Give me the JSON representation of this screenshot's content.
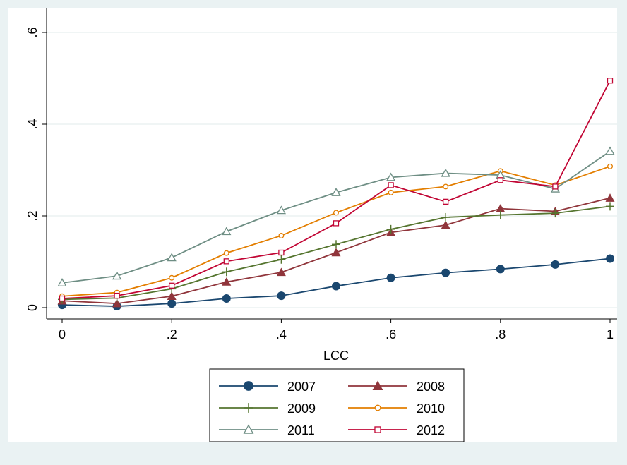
{
  "chart_data": {
    "type": "line",
    "title": "",
    "xlabel": "LCC",
    "ylabel": "",
    "x": [
      0,
      0.1,
      0.2,
      0.3,
      0.4,
      0.5,
      0.6,
      0.7,
      0.8,
      0.9,
      1.0
    ],
    "xlim": [
      0,
      1
    ],
    "ylim": [
      0,
      0.6
    ],
    "xticks": [
      0,
      0.2,
      0.4,
      0.6,
      0.8,
      1.0
    ],
    "xtick_labels": [
      "0",
      ".2",
      ".4",
      ".6",
      ".8",
      "1"
    ],
    "yticks": [
      0,
      0.2,
      0.4,
      0.6
    ],
    "ytick_labels": [
      "0",
      ".2",
      ".4",
      ".6"
    ],
    "grid": true,
    "legend_position": "bottom",
    "legend_columns": 2,
    "series": [
      {
        "name": "2007",
        "color": "#1a476f",
        "marker": "filled-circle",
        "values": [
          0.006,
          0.003,
          0.009,
          0.02,
          0.026,
          0.047,
          0.065,
          0.076,
          0.084,
          0.094,
          0.107
        ]
      },
      {
        "name": "2008",
        "color": "#90353b",
        "marker": "filled-triangle",
        "values": [
          0.015,
          0.009,
          0.025,
          0.056,
          0.077,
          0.12,
          0.164,
          0.18,
          0.216,
          0.21,
          0.239
        ]
      },
      {
        "name": "2009",
        "color": "#55752f",
        "marker": "plus",
        "values": [
          0.018,
          0.021,
          0.041,
          0.078,
          0.105,
          0.138,
          0.171,
          0.197,
          0.202,
          0.206,
          0.221
        ]
      },
      {
        "name": "2010",
        "color": "#e37e00",
        "marker": "hollow-circle",
        "values": [
          0.025,
          0.033,
          0.065,
          0.119,
          0.157,
          0.207,
          0.251,
          0.264,
          0.298,
          0.267,
          0.308
        ]
      },
      {
        "name": "2011",
        "color": "#6e8e84",
        "marker": "hollow-triangle",
        "values": [
          0.054,
          0.069,
          0.109,
          0.166,
          0.212,
          0.251,
          0.284,
          0.293,
          0.289,
          0.259,
          0.341
        ]
      },
      {
        "name": "2012",
        "color": "#c10534",
        "marker": "hollow-square",
        "values": [
          0.02,
          0.026,
          0.048,
          0.101,
          0.12,
          0.184,
          0.267,
          0.231,
          0.278,
          0.264,
          0.495
        ]
      }
    ]
  }
}
